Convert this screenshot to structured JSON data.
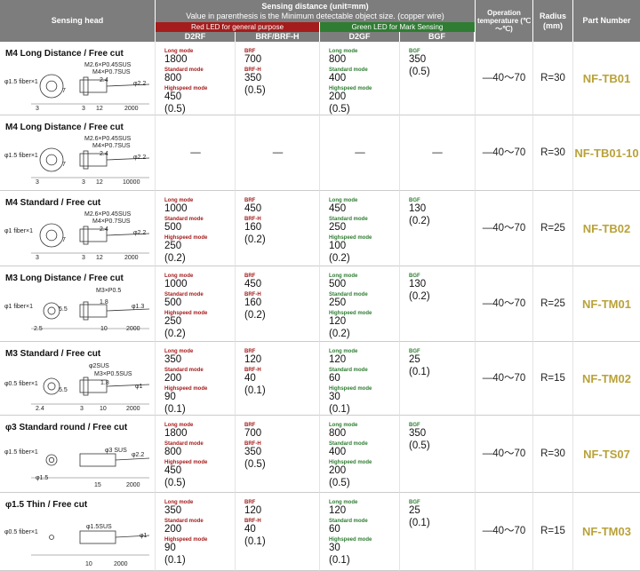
{
  "header": {
    "sensing_head": "Sensing head",
    "sensing_distance": "Sensing distance (unit=mm)",
    "note": "Value in parenthesis is the Minimum detectable object size. (copper wire)",
    "red_led": "Red LED for general purpose",
    "green_led": "Green LED for Mark Sensing",
    "sub": [
      "D2RF",
      "BRF/BRF-H",
      "D2GF",
      "BGF"
    ],
    "temperature": "Operation temperature (℃～℃)",
    "radius": "Radius (mm)",
    "part": "Part Number"
  },
  "rows": [
    {
      "head": {
        "title": "M4 Long Distance / Free cut",
        "labels": [
          "φ1.5 fiber×1",
          "M2.6×P0.45SUS",
          "M4×P0.7SUS",
          "2.4",
          "7",
          "φ2.2",
          "3",
          "3",
          "12",
          "2000"
        ]
      },
      "d2rf": {
        "modes": [
          {
            "mode": "Long mode",
            "value": 1800
          },
          {
            "mode": "Standard mode",
            "value": 800
          },
          {
            "mode": "Highspeed mode",
            "value": 450
          }
        ],
        "min": "(0.5)"
      },
      "brf": {
        "modes": [
          {
            "mode": "BRF",
            "value": 700
          },
          {
            "mode": "BRF-H",
            "value": 350
          }
        ],
        "min": "(0.5)"
      },
      "d2gf": {
        "modes": [
          {
            "mode": "Long mode",
            "value": 800
          },
          {
            "mode": "Standard mode",
            "value": 400
          },
          {
            "mode": "Highspeed mode",
            "value": 200
          }
        ],
        "min": "(0.5)"
      },
      "bgf": {
        "modes": [
          {
            "mode": "BGF",
            "value": 350
          }
        ],
        "min": "(0.5)"
      },
      "temp": "—40～70",
      "radius": "R=30",
      "part": "NF-TB01"
    },
    {
      "head": {
        "title": "M4 Long Distance / Free cut",
        "labels": [
          "φ1.5 fiber×1",
          "M2.6×P0.45SUS",
          "M4×P0.7SUS",
          "2.4",
          "7",
          "φ2.2",
          "3",
          "3",
          "12",
          "10000"
        ]
      },
      "d2rf": "—",
      "brf": "—",
      "d2gf": "—",
      "bgf": "—",
      "temp": "—40～70",
      "radius": "R=30",
      "part": "NF-TB01-10"
    },
    {
      "head": {
        "title": "M4 Standard / Free cut",
        "labels": [
          "φ1 fiber×1",
          "M2.6×P0.45SUS",
          "M4×P0.7SUS",
          "2.4",
          "7",
          "φ2.2",
          "3",
          "3",
          "12",
          "2000"
        ]
      },
      "d2rf": {
        "modes": [
          {
            "mode": "Long mode",
            "value": 1000
          },
          {
            "mode": "Standard mode",
            "value": 500
          },
          {
            "mode": "Highspeed mode",
            "value": 250
          }
        ],
        "min": "(0.2)"
      },
      "brf": {
        "modes": [
          {
            "mode": "BRF",
            "value": 450
          },
          {
            "mode": "BRF-H",
            "value": 160
          }
        ],
        "min": "(0.2)"
      },
      "d2gf": {
        "modes": [
          {
            "mode": "Long mode",
            "value": 450
          },
          {
            "mode": "Standard mode",
            "value": 250
          },
          {
            "mode": "Highspeed mode",
            "value": 100
          }
        ],
        "min": "(0.2)"
      },
      "bgf": {
        "modes": [
          {
            "mode": "BGF",
            "value": 130
          }
        ],
        "min": "(0.2)"
      },
      "temp": "—40～70",
      "radius": "R=25",
      "part": "NF-TB02"
    },
    {
      "head": {
        "title": "M3 Long Distance / Free cut",
        "labels": [
          "φ1 fiber×1",
          "M3×P0.5",
          "1.8",
          "5.5",
          "φ1.3",
          "2.5",
          "10",
          "2000"
        ]
      },
      "d2rf": {
        "modes": [
          {
            "mode": "Long mode",
            "value": 1000
          },
          {
            "mode": "Standard mode",
            "value": 500
          },
          {
            "mode": "Highspeed mode",
            "value": 250
          }
        ],
        "min": "(0.2)"
      },
      "brf": {
        "modes": [
          {
            "mode": "BRF",
            "value": 450
          },
          {
            "mode": "BRF-H",
            "value": 160
          }
        ],
        "min": "(0.2)"
      },
      "d2gf": {
        "modes": [
          {
            "mode": "Long mode",
            "value": 500
          },
          {
            "mode": "Standard mode",
            "value": 250
          },
          {
            "mode": "Highspeed mode",
            "value": 120
          }
        ],
        "min": "(0.2)"
      },
      "bgf": {
        "modes": [
          {
            "mode": "BGF",
            "value": 130
          }
        ],
        "min": "(0.2)"
      },
      "temp": "—40～70",
      "radius": "R=25",
      "part": "NF-TM01"
    },
    {
      "head": {
        "title": "M3 Standard / Free cut",
        "labels": [
          "φ0.5 fiber×1",
          "φ2SUS",
          "M3×P0.5SUS",
          "1.8",
          "5.5",
          "φ1",
          "2.4",
          "3",
          "10",
          "2000"
        ]
      },
      "d2rf": {
        "modes": [
          {
            "mode": "Long mode",
            "value": 350
          },
          {
            "mode": "Standard mode",
            "value": 200
          },
          {
            "mode": "Highspeed mode",
            "value": 90
          }
        ],
        "min": "(0.1)"
      },
      "brf": {
        "modes": [
          {
            "mode": "BRF",
            "value": 120
          },
          {
            "mode": "BRF-H",
            "value": 40
          }
        ],
        "min": "(0.1)"
      },
      "d2gf": {
        "modes": [
          {
            "mode": "Long mode",
            "value": 120
          },
          {
            "mode": "Standard mode",
            "value": 60
          },
          {
            "mode": "Highspeed mode",
            "value": 30
          }
        ],
        "min": "(0.1)"
      },
      "bgf": {
        "modes": [
          {
            "mode": "BGF",
            "value": 25
          }
        ],
        "min": "(0.1)"
      },
      "temp": "—40～70",
      "radius": "R=15",
      "part": "NF-TM02"
    },
    {
      "head": {
        "title": "φ3 Standard round / Free cut",
        "labels": [
          "φ1.5 fiber×1",
          "φ3 SUS",
          "φ2.2",
          "φ1.5",
          "15",
          "2000"
        ]
      },
      "d2rf": {
        "modes": [
          {
            "mode": "Long mode",
            "value": 1800
          },
          {
            "mode": "Standard mode",
            "value": 800
          },
          {
            "mode": "Highspeed mode",
            "value": 450
          }
        ],
        "min": "(0.5)"
      },
      "brf": {
        "modes": [
          {
            "mode": "BRF",
            "value": 700
          },
          {
            "mode": "BRF-H",
            "value": 350
          }
        ],
        "min": "(0.5)"
      },
      "d2gf": {
        "modes": [
          {
            "mode": "Long mode",
            "value": 800
          },
          {
            "mode": "Standard mode",
            "value": 400
          },
          {
            "mode": "Highspeed mode",
            "value": 200
          }
        ],
        "min": "(0.5)"
      },
      "bgf": {
        "modes": [
          {
            "mode": "BGF",
            "value": 350
          }
        ],
        "min": "(0.5)"
      },
      "temp": "—40～70",
      "radius": "R=30",
      "part": "NF-TS07"
    },
    {
      "head": {
        "title": "φ1.5 Thin / Free cut",
        "labels": [
          "φ0.5 fiber×1",
          "φ1.5SUS",
          "φ1",
          "10",
          "2000"
        ]
      },
      "d2rf": {
        "modes": [
          {
            "mode": "Long mode",
            "value": 350
          },
          {
            "mode": "Standard mode",
            "value": 200
          },
          {
            "mode": "Highspeed mode",
            "value": 90
          }
        ],
        "min": "(0.1)"
      },
      "brf": {
        "modes": [
          {
            "mode": "BRF",
            "value": 120
          },
          {
            "mode": "BRF-H",
            "value": 40
          }
        ],
        "min": "(0.1)"
      },
      "d2gf": {
        "modes": [
          {
            "mode": "Long mode",
            "value": 120
          },
          {
            "mode": "Standard mode",
            "value": 60
          },
          {
            "mode": "Highspeed mode",
            "value": 30
          }
        ],
        "min": "(0.1)"
      },
      "bgf": {
        "modes": [
          {
            "mode": "BGF",
            "value": 25
          }
        ],
        "min": "(0.1)"
      },
      "temp": "—40～70",
      "radius": "R=15",
      "part": "NF-TM03"
    }
  ]
}
